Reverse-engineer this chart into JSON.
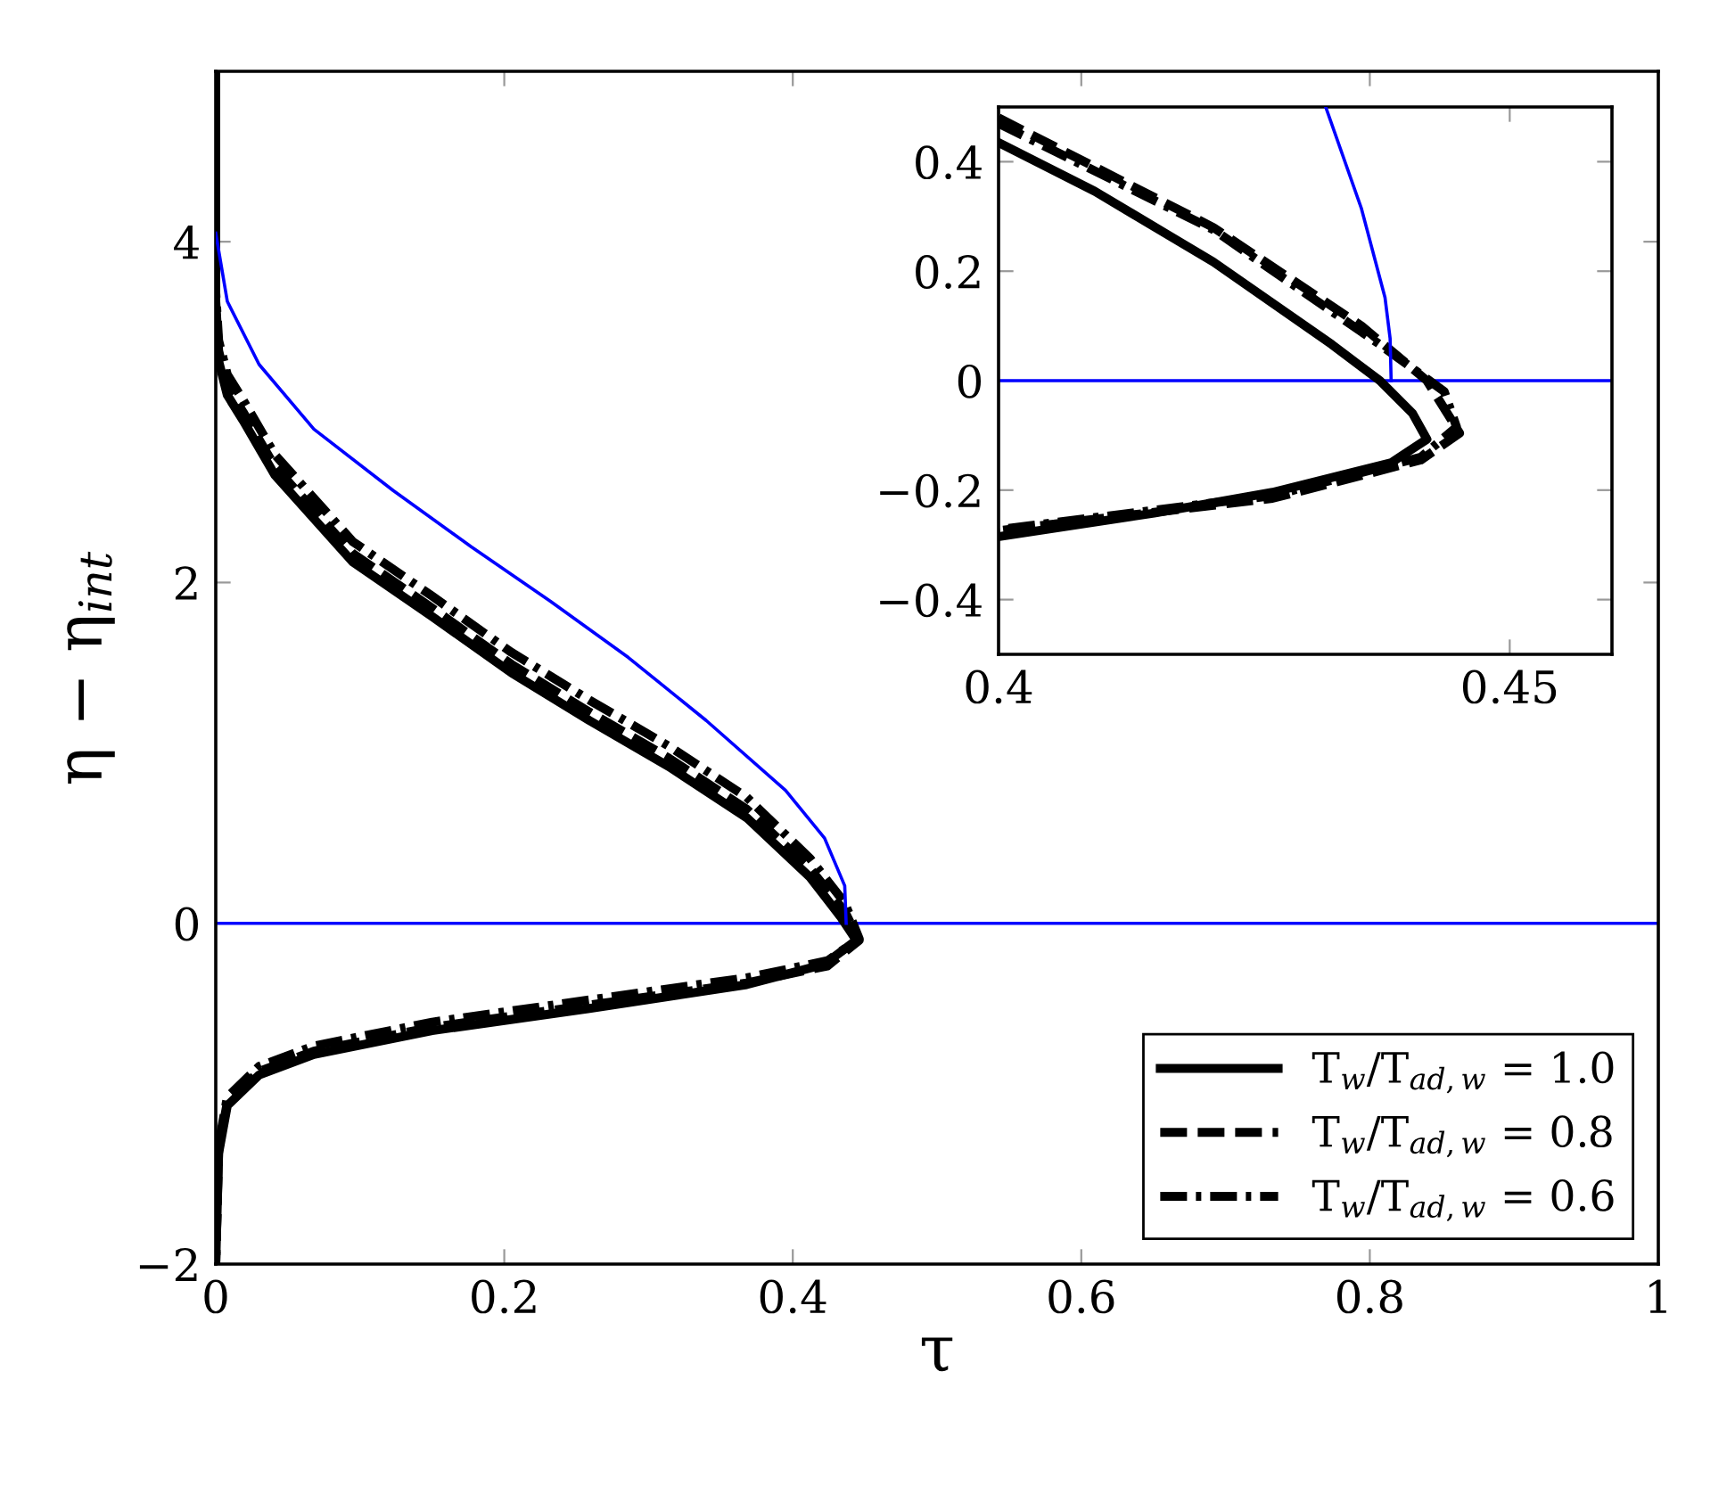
{
  "chart_data": [
    {
      "type": "line",
      "xlabel": "τ",
      "ylabel": "η − η$_{int}$",
      "xlim": [
        0,
        1
      ],
      "ylim": [
        -2,
        5
      ],
      "xticks": [
        0,
        0.2,
        0.4,
        0.6,
        0.8,
        1
      ],
      "yticks": [
        -2,
        0,
        2,
        4
      ],
      "grid": false,
      "legend": "bottom right",
      "marker": "none",
      "ref_lines": [
        {
          "axis": "y",
          "value": 0,
          "color": "#0000ff"
        }
      ],
      "series": [
        {
          "name": "T$_{w}$/T$_{ad,w}$ = 1.0",
          "color": "#000000",
          "line_style": "solid",
          "x": [
            0,
            0,
            0.002,
            0.008,
            0.019,
            0.041,
            0.095,
            0.15,
            0.205,
            0.259,
            0.314,
            0.368,
            0.412,
            0.433,
            0.444,
            0.422,
            0.368,
            0.259,
            0.15,
            0.068,
            0.03,
            0.008,
            0.002,
            0
          ],
          "values": [
            5,
            3.6,
            3.3,
            3.1,
            2.95,
            2.63,
            2.12,
            1.8,
            1.47,
            1.19,
            0.92,
            0.62,
            0.27,
            0.04,
            -0.1,
            -0.24,
            -0.36,
            -0.5,
            -0.63,
            -0.77,
            -0.89,
            -1.07,
            -1.35,
            -2
          ]
        },
        {
          "name": "T$_{w}$/T$_{ad,w}$ = 0.8",
          "color": "#000000",
          "line_style": "dashed",
          "x": [
            0,
            0,
            0.002,
            0.008,
            0.019,
            0.041,
            0.095,
            0.15,
            0.205,
            0.259,
            0.314,
            0.368,
            0.412,
            0.436,
            0.446,
            0.424,
            0.368,
            0.259,
            0.15,
            0.068,
            0.03,
            0.008,
            0.002,
            0
          ],
          "values": [
            5,
            3.65,
            3.36,
            3.15,
            3.0,
            2.68,
            2.17,
            1.85,
            1.52,
            1.24,
            0.97,
            0.67,
            0.32,
            0.07,
            -0.1,
            -0.25,
            -0.35,
            -0.48,
            -0.61,
            -0.75,
            -0.87,
            -1.05,
            -1.33,
            -2
          ]
        },
        {
          "name": "T$_{w}$/T$_{ad,w}$ = 0.6",
          "color": "#000000",
          "line_style": "dashdot",
          "x": [
            0,
            0,
            0.002,
            0.008,
            0.019,
            0.041,
            0.095,
            0.15,
            0.205,
            0.259,
            0.314,
            0.368,
            0.412,
            0.436,
            0.446,
            0.424,
            0.368,
            0.259,
            0.15,
            0.068,
            0.03,
            0.008,
            0.002,
            0
          ],
          "values": [
            5,
            3.7,
            3.42,
            3.22,
            3.07,
            2.75,
            2.24,
            1.92,
            1.59,
            1.31,
            1.04,
            0.74,
            0.38,
            0.12,
            -0.09,
            -0.22,
            -0.32,
            -0.45,
            -0.58,
            -0.72,
            -0.84,
            -1.02,
            -1.3,
            -2
          ]
        },
        {
          "color": "#0000ff",
          "line_style": "solid",
          "x": [
            0,
            0.008,
            0.03,
            0.068,
            0.123,
            0.177,
            0.232,
            0.286,
            0.34,
            0.395,
            0.422,
            0.436,
            0.437
          ],
          "values": [
            4.05,
            3.65,
            3.28,
            2.9,
            2.54,
            2.21,
            1.89,
            1.56,
            1.19,
            0.78,
            0.5,
            0.22,
            0
          ]
        }
      ]
    },
    {
      "type": "line",
      "xlim": [
        0.4,
        0.46
      ],
      "ylim": [
        -0.5,
        0.5
      ],
      "xticks": [
        0.4,
        0.45
      ],
      "yticks": [
        -0.4,
        -0.2,
        0,
        0.2,
        0.4
      ],
      "grid": false,
      "legend": false,
      "marker": "none",
      "ref_lines": [
        {
          "axis": "y",
          "value": 0,
          "color": "#0000ff"
        }
      ],
      "series": [
        {
          "color": "#000000",
          "line_style": "solid",
          "x": [
            0.4,
            0.4094,
            0.421,
            0.4326,
            0.4373,
            0.4405,
            0.4419,
            0.4384,
            0.4268,
            0.4152,
            0.4
          ],
          "values": [
            0.435,
            0.346,
            0.217,
            0.066,
            0,
            -0.06,
            -0.107,
            -0.15,
            -0.204,
            -0.242,
            -0.285
          ]
        },
        {
          "color": "#000000",
          "line_style": "dashed",
          "x": [
            0.4,
            0.421,
            0.4355,
            0.4419,
            0.4451,
            0.4413,
            0.4268,
            0.4
          ],
          "values": [
            0.48,
            0.28,
            0.1,
            0,
            -0.096,
            -0.145,
            -0.215,
            -0.274
          ]
        },
        {
          "color": "#000000",
          "line_style": "dashdot",
          "x": [
            0.4,
            0.421,
            0.4373,
            0.4436,
            0.4448,
            0.4413,
            0.4268,
            0.4
          ],
          "values": [
            0.47,
            0.276,
            0.066,
            -0.02,
            -0.085,
            -0.14,
            -0.21,
            -0.272
          ]
        },
        {
          "color": "#0000ff",
          "line_style": "solid",
          "x": [
            0.432,
            0.4355,
            0.4378,
            0.4383,
            0.4384
          ],
          "values": [
            0.5,
            0.314,
            0.152,
            0.077,
            0
          ]
        }
      ]
    }
  ]
}
